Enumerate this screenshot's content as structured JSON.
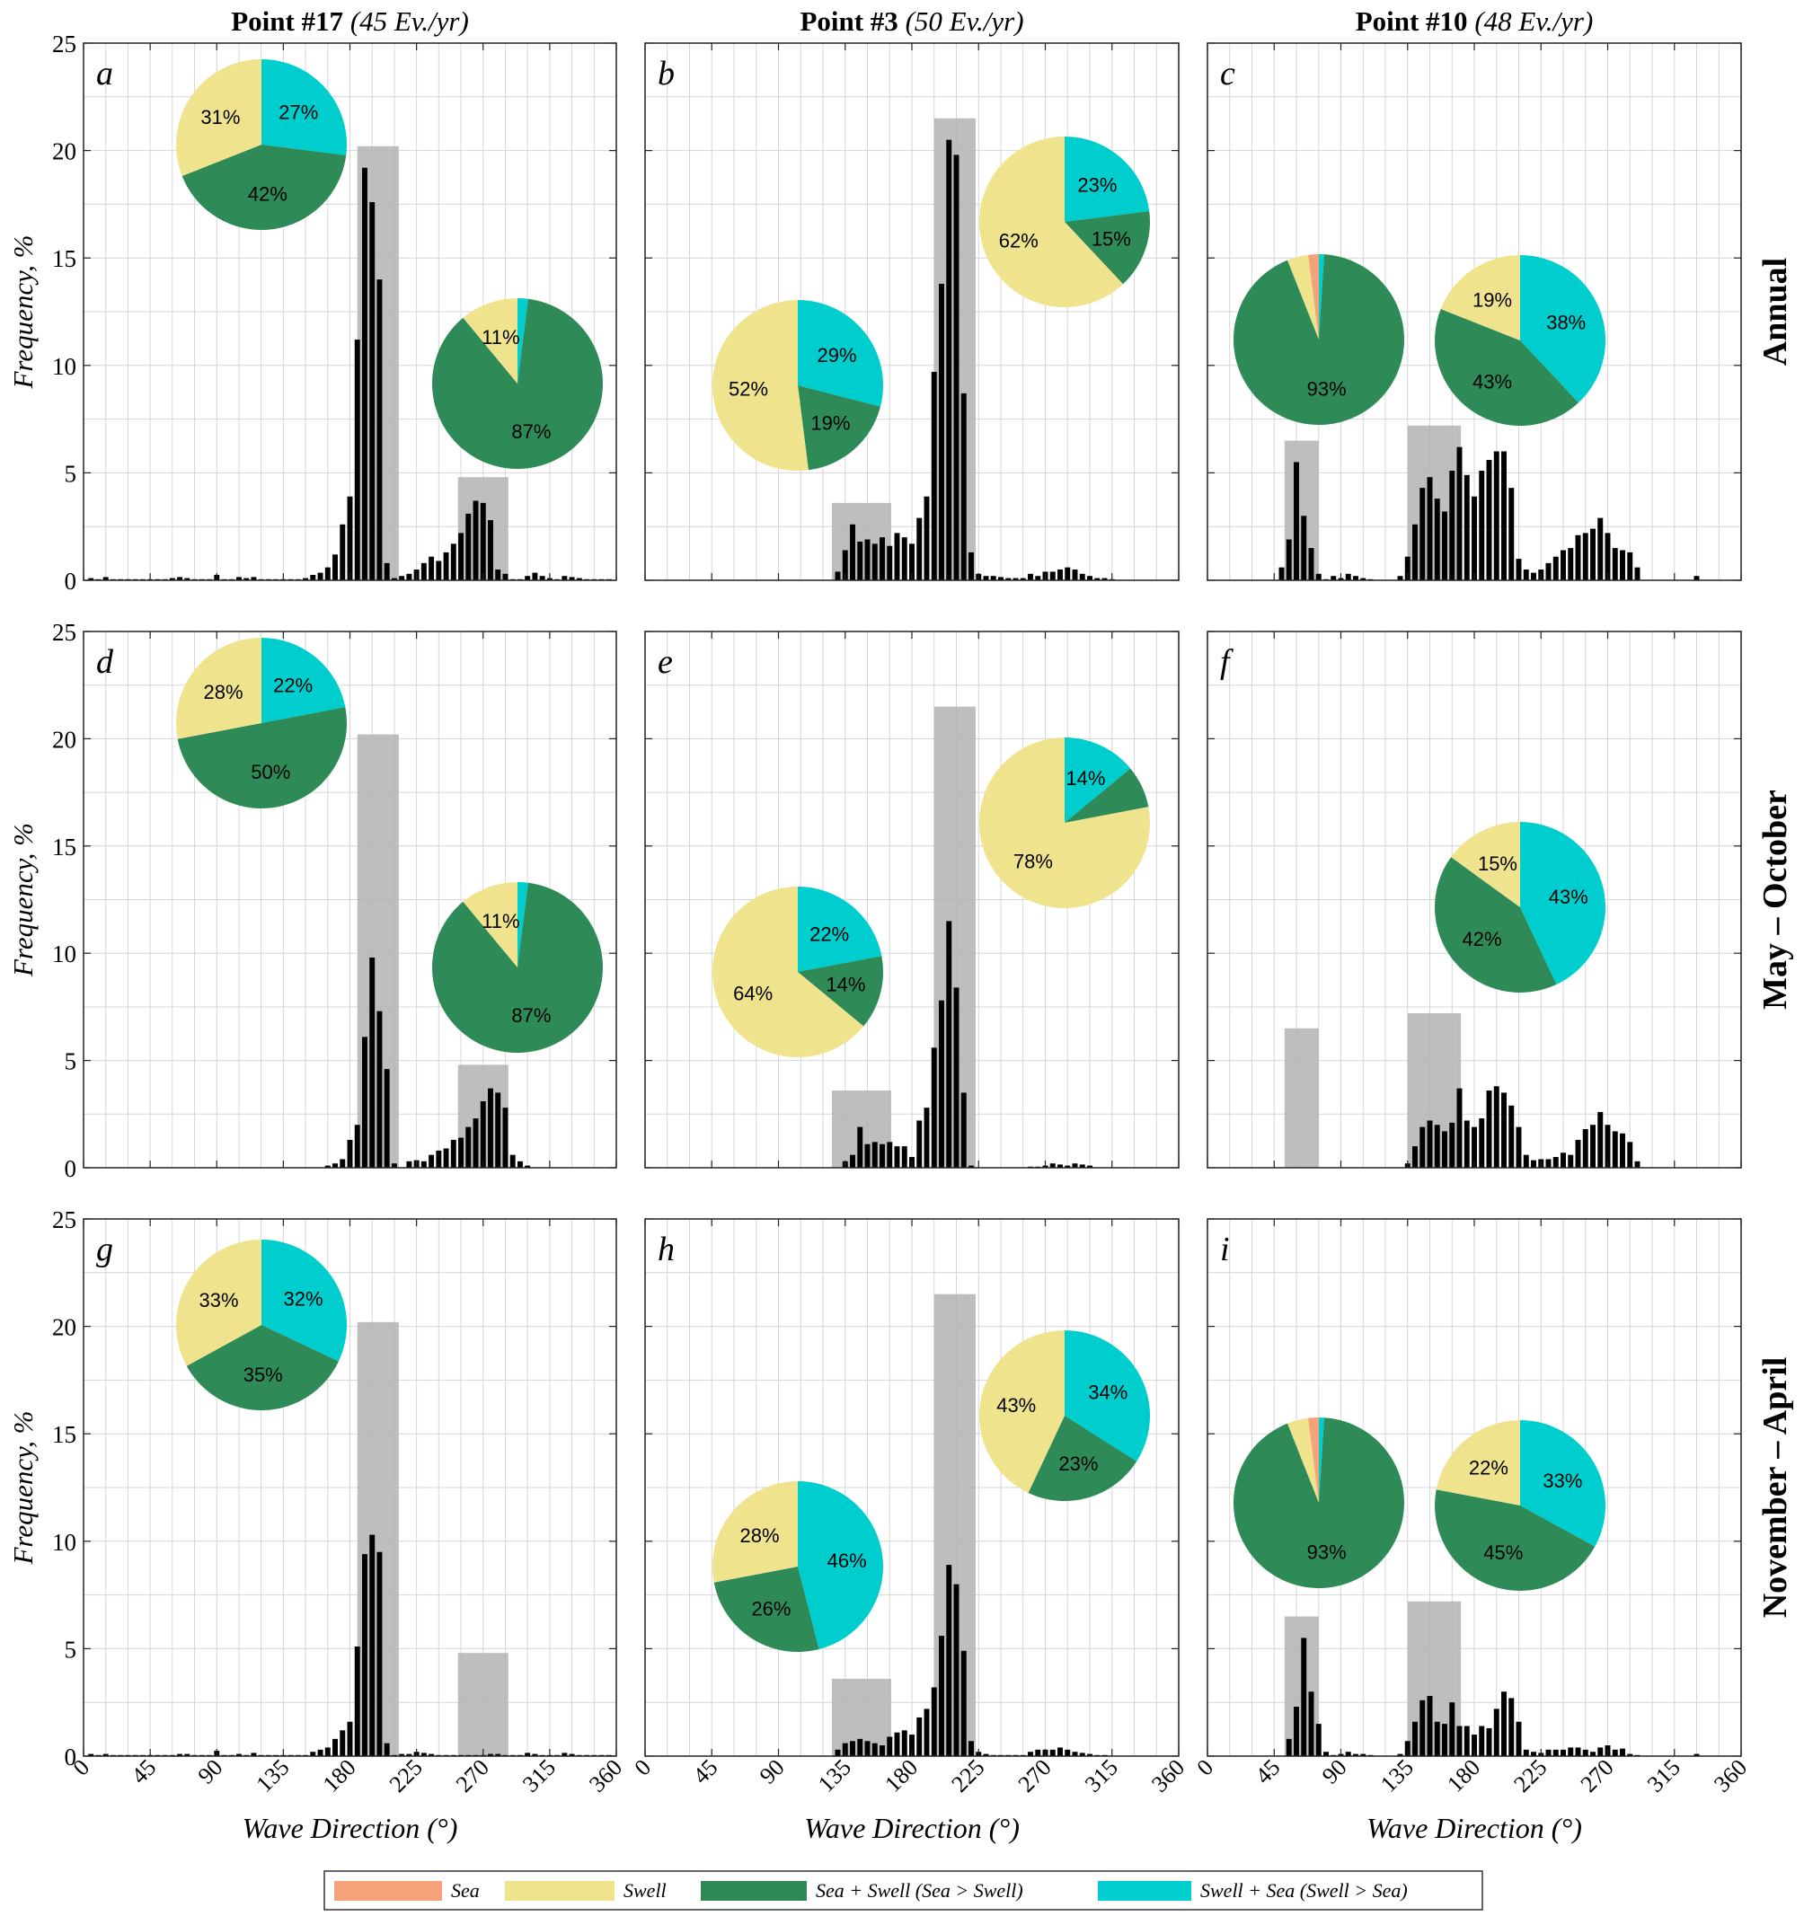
{
  "figure": {
    "columns": [
      {
        "title": "Point #17",
        "subtitle": "(45 Ev./yr)"
      },
      {
        "title": "Point #3",
        "subtitle": "(50 Ev./yr)"
      },
      {
        "title": "Point #10",
        "subtitle": "(48 Ev./yr)"
      }
    ],
    "rows": [
      "Annual",
      "May – October",
      "November – April"
    ],
    "ylabel": "Frequency, %",
    "xlabel": "Wave Direction (°)",
    "xticks": [
      0,
      45,
      90,
      135,
      180,
      225,
      270,
      315,
      360
    ],
    "yticks": [
      0,
      5,
      10,
      15,
      20,
      25
    ],
    "xlim": [
      0,
      360
    ],
    "ylim": [
      0,
      25
    ],
    "legend": {
      "placement": "bottom-center",
      "items": [
        {
          "label": "Sea",
          "color": "#F5A27A"
        },
        {
          "label": "Swell",
          "color": "#F0E38E"
        },
        {
          "label": "Sea + Swell (Sea > Swell)",
          "color": "#2E8B57"
        },
        {
          "label": "Swell + Sea (Swell > Sea)",
          "color": "#00CDCD"
        }
      ]
    },
    "colors": {
      "bar": "#000000",
      "sector_band": "#b3b3b3",
      "grid": "#d6d6d6"
    }
  },
  "chart_data": [
    {
      "type": "bar",
      "panel": "a",
      "column": 0,
      "row": 0,
      "x_step": 5,
      "x": [
        5,
        10,
        15,
        20,
        25,
        30,
        35,
        40,
        45,
        50,
        55,
        60,
        65,
        70,
        75,
        80,
        85,
        90,
        95,
        100,
        105,
        110,
        115,
        120,
        125,
        130,
        135,
        140,
        145,
        150,
        155,
        160,
        165,
        170,
        175,
        180,
        185,
        190,
        195,
        200,
        205,
        210,
        215,
        220,
        225,
        230,
        235,
        240,
        245,
        250,
        255,
        260,
        265,
        270,
        275,
        280,
        285,
        290,
        295,
        300,
        305,
        310,
        315,
        320,
        325,
        330,
        335,
        340,
        345,
        350,
        355
      ],
      "values": [
        0.1,
        0.05,
        0.15,
        0.05,
        0.05,
        0.05,
        0.05,
        0.05,
        0.05,
        0.05,
        0.05,
        0.1,
        0.15,
        0.1,
        0.05,
        0.05,
        0.05,
        0.25,
        0.05,
        0.05,
        0.15,
        0.1,
        0.15,
        0.05,
        0.05,
        0.05,
        0.05,
        0.05,
        0.05,
        0.1,
        0.25,
        0.35,
        0.6,
        1.2,
        2.6,
        3.9,
        11.2,
        19.2,
        17.6,
        14.0,
        0.8,
        0.1,
        0.2,
        0.3,
        0.5,
        0.8,
        1.1,
        0.9,
        1.3,
        1.7,
        2.2,
        3.1,
        3.7,
        3.6,
        2.8,
        0.5,
        0.3,
        0.05,
        0.05,
        0.2,
        0.35,
        0.2,
        0.1,
        0.05,
        0.2,
        0.15,
        0.1,
        0.05,
        0.05,
        0.05,
        0.05
      ],
      "sectors": [
        {
          "from": 185,
          "to": 213,
          "height": 20.2
        },
        {
          "from": 253,
          "to": 287,
          "height": 4.8
        }
      ],
      "pies": [
        {
          "values": [
            0,
            31,
            42,
            27
          ],
          "labels": [
            "",
            "31%",
            "42%",
            "27%"
          ]
        },
        {
          "values": [
            0,
            11,
            87,
            2
          ],
          "labels": [
            "",
            "11%",
            "87%",
            ""
          ]
        }
      ]
    },
    {
      "type": "bar",
      "panel": "b",
      "column": 1,
      "row": 0,
      "x_step": 5,
      "x": [
        130,
        135,
        140,
        145,
        150,
        155,
        160,
        165,
        170,
        175,
        180,
        185,
        190,
        195,
        200,
        205,
        210,
        215,
        220,
        225,
        230,
        235,
        240,
        245,
        250,
        255,
        260,
        265,
        270,
        275,
        280,
        285,
        290,
        295,
        300,
        305,
        310,
        315
      ],
      "values": [
        0.4,
        1.4,
        2.6,
        1.8,
        1.9,
        1.7,
        2.0,
        1.6,
        2.2,
        2.0,
        1.7,
        2.9,
        3.9,
        9.7,
        13.8,
        20.5,
        19.8,
        8.7,
        1.3,
        0.3,
        0.2,
        0.2,
        0.15,
        0.1,
        0.1,
        0.1,
        0.3,
        0.2,
        0.4,
        0.4,
        0.5,
        0.6,
        0.5,
        0.3,
        0.2,
        0.1,
        0.1,
        0.05
      ],
      "sectors": [
        {
          "from": 126,
          "to": 166,
          "height": 3.6
        },
        {
          "from": 195,
          "to": 223,
          "height": 21.5
        }
      ],
      "pies": [
        {
          "values": [
            0,
            52,
            19,
            29
          ],
          "labels": [
            "",
            "52%",
            "19%",
            "29%"
          ]
        },
        {
          "values": [
            0,
            62,
            15,
            23
          ],
          "labels": [
            "",
            "62%",
            "15%",
            "23%"
          ]
        }
      ]
    },
    {
      "type": "bar",
      "panel": "c",
      "column": 2,
      "row": 0,
      "x_step": 5,
      "x": [
        50,
        55,
        60,
        65,
        70,
        75,
        80,
        85,
        90,
        95,
        100,
        105,
        110,
        130,
        135,
        140,
        145,
        150,
        155,
        160,
        165,
        170,
        175,
        180,
        185,
        190,
        195,
        200,
        205,
        210,
        215,
        220,
        225,
        230,
        235,
        240,
        245,
        250,
        255,
        260,
        265,
        270,
        275,
        280,
        285,
        290,
        330
      ],
      "values": [
        0.6,
        1.9,
        5.5,
        3.0,
        1.5,
        0.3,
        0.05,
        0.2,
        0.1,
        0.3,
        0.2,
        0.1,
        0.05,
        0.2,
        1.1,
        2.6,
        4.3,
        4.8,
        3.8,
        3.2,
        5.1,
        6.2,
        4.9,
        3.9,
        5.1,
        5.6,
        6.0,
        6.0,
        4.3,
        1.0,
        0.5,
        0.35,
        0.5,
        0.8,
        1.1,
        1.4,
        1.5,
        2.1,
        2.2,
        2.4,
        2.9,
        2.2,
        1.5,
        1.4,
        1.3,
        0.6,
        0.2
      ],
      "sectors": [
        {
          "from": 52,
          "to": 75,
          "height": 6.5
        },
        {
          "from": 135,
          "to": 171,
          "height": 7.2
        }
      ],
      "pies": [
        {
          "values": [
            2,
            4,
            93,
            1
          ],
          "labels": [
            "",
            "",
            "93%",
            ""
          ]
        },
        {
          "values": [
            0,
            19,
            43,
            38
          ],
          "labels": [
            "",
            "19%",
            "43%",
            "38%"
          ]
        }
      ]
    },
    {
      "type": "bar",
      "panel": "d",
      "column": 0,
      "row": 1,
      "x_step": 5,
      "x": [
        165,
        170,
        175,
        180,
        185,
        190,
        195,
        200,
        205,
        210,
        220,
        225,
        230,
        235,
        240,
        245,
        250,
        255,
        260,
        265,
        270,
        275,
        280,
        285,
        290,
        295,
        300
      ],
      "values": [
        0.1,
        0.2,
        0.4,
        1.3,
        2.0,
        6.1,
        9.8,
        7.3,
        4.6,
        0.2,
        0.3,
        0.35,
        0.3,
        0.6,
        0.8,
        0.9,
        1.3,
        1.4,
        1.9,
        2.3,
        3.1,
        3.7,
        3.5,
        2.8,
        0.6,
        0.3,
        0.1
      ],
      "sectors": [
        {
          "from": 185,
          "to": 213,
          "height": 20.2
        },
        {
          "from": 253,
          "to": 287,
          "height": 4.8
        }
      ],
      "pies": [
        {
          "values": [
            0,
            28,
            50,
            22
          ],
          "labels": [
            "",
            "28%",
            "50%",
            "22%"
          ]
        },
        {
          "values": [
            0,
            11,
            87,
            2
          ],
          "labels": [
            "",
            "11%",
            "87%",
            ""
          ]
        }
      ]
    },
    {
      "type": "bar",
      "panel": "e",
      "column": 1,
      "row": 1,
      "x_step": 5,
      "x": [
        135,
        140,
        145,
        150,
        155,
        160,
        165,
        170,
        175,
        180,
        185,
        190,
        195,
        200,
        205,
        210,
        215,
        220,
        260,
        265,
        270,
        275,
        280,
        285,
        290,
        295,
        300
      ],
      "values": [
        0.3,
        0.6,
        1.9,
        1.1,
        1.2,
        1.1,
        1.2,
        1.0,
        1.0,
        0.5,
        2.2,
        2.8,
        5.6,
        7.8,
        11.5,
        8.4,
        3.5,
        0.1,
        0.05,
        0.05,
        0.1,
        0.2,
        0.15,
        0.1,
        0.2,
        0.15,
        0.1
      ],
      "sectors": [
        {
          "from": 126,
          "to": 166,
          "height": 3.6
        },
        {
          "from": 195,
          "to": 223,
          "height": 21.5
        }
      ],
      "pies": [
        {
          "values": [
            0,
            64,
            14,
            22
          ],
          "labels": [
            "",
            "64%",
            "14%",
            "22%"
          ]
        },
        {
          "values": [
            0,
            78,
            8,
            14
          ],
          "labels": [
            "",
            "78%",
            "",
            "14%"
          ]
        }
      ]
    },
    {
      "type": "bar",
      "panel": "f",
      "column": 2,
      "row": 1,
      "x_step": 5,
      "x": [
        135,
        140,
        145,
        150,
        155,
        160,
        165,
        170,
        175,
        180,
        185,
        190,
        195,
        200,
        205,
        210,
        215,
        220,
        225,
        230,
        235,
        240,
        245,
        250,
        255,
        260,
        265,
        270,
        275,
        280,
        285,
        290
      ],
      "values": [
        0.2,
        1.0,
        1.9,
        2.2,
        2.0,
        1.7,
        2.1,
        3.7,
        2.2,
        1.9,
        2.3,
        3.6,
        3.8,
        3.5,
        2.9,
        1.9,
        0.6,
        0.35,
        0.4,
        0.4,
        0.5,
        0.7,
        0.6,
        1.3,
        1.8,
        2.0,
        2.6,
        2.0,
        1.7,
        1.6,
        1.2,
        0.3
      ],
      "sectors": [
        {
          "from": 52,
          "to": 75,
          "height": 6.5
        },
        {
          "from": 135,
          "to": 171,
          "height": 7.2
        }
      ],
      "pies": [
        {
          "values": [
            0,
            15,
            42,
            43
          ],
          "labels": [
            "",
            "15%",
            "42%",
            "43%"
          ]
        }
      ]
    },
    {
      "type": "bar",
      "panel": "g",
      "column": 0,
      "row": 2,
      "x_step": 5,
      "x": [
        5,
        10,
        15,
        20,
        25,
        30,
        35,
        40,
        45,
        50,
        55,
        60,
        65,
        70,
        75,
        80,
        85,
        90,
        95,
        100,
        105,
        110,
        115,
        120,
        125,
        130,
        135,
        140,
        145,
        150,
        155,
        160,
        165,
        170,
        175,
        180,
        185,
        190,
        195,
        200,
        205,
        210,
        215,
        220,
        225,
        230,
        235,
        240,
        245,
        250,
        255,
        260,
        265,
        270,
        275,
        280,
        285,
        290,
        295,
        300,
        305,
        310,
        315,
        320,
        325,
        330,
        335,
        340,
        345,
        350,
        355
      ],
      "values": [
        0.1,
        0.05,
        0.1,
        0.05,
        0.05,
        0.05,
        0.05,
        0.05,
        0.05,
        0.05,
        0.05,
        0.05,
        0.1,
        0.1,
        0.05,
        0.05,
        0.05,
        0.25,
        0.05,
        0.05,
        0.1,
        0.05,
        0.15,
        0.05,
        0.05,
        0.05,
        0.05,
        0.05,
        0.05,
        0.05,
        0.2,
        0.3,
        0.4,
        0.8,
        1.2,
        1.6,
        5.1,
        9.4,
        10.3,
        9.5,
        0.6,
        0.05,
        0.1,
        0.1,
        0.2,
        0.15,
        0.1,
        0.05,
        0.05,
        0.05,
        0.05,
        0.05,
        0.05,
        0.05,
        0.1,
        0.1,
        0.05,
        0.05,
        0.05,
        0.15,
        0.1,
        0.05,
        0.05,
        0.05,
        0.15,
        0.1,
        0.05,
        0.05,
        0.05,
        0.05,
        0.05
      ],
      "sectors": [
        {
          "from": 185,
          "to": 213,
          "height": 20.2
        },
        {
          "from": 253,
          "to": 287,
          "height": 4.8
        }
      ],
      "pies": [
        {
          "values": [
            0,
            33,
            35,
            32
          ],
          "labels": [
            "",
            "33%",
            "35%",
            "32%"
          ]
        }
      ]
    },
    {
      "type": "bar",
      "panel": "h",
      "column": 1,
      "row": 2,
      "x_step": 5,
      "x": [
        130,
        135,
        140,
        145,
        150,
        155,
        160,
        165,
        170,
        175,
        180,
        185,
        190,
        195,
        200,
        205,
        210,
        215,
        220,
        225,
        230,
        235,
        240,
        245,
        250,
        255,
        260,
        265,
        270,
        275,
        280,
        285,
        290,
        295,
        300,
        305,
        310
      ],
      "values": [
        0.3,
        0.6,
        0.7,
        0.8,
        0.7,
        0.6,
        0.5,
        0.9,
        1.1,
        1.2,
        1.0,
        1.8,
        2.2,
        3.2,
        5.6,
        8.9,
        8.0,
        4.9,
        0.7,
        0.2,
        0.1,
        0.05,
        0.05,
        0.05,
        0.05,
        0.05,
        0.2,
        0.3,
        0.3,
        0.3,
        0.4,
        0.3,
        0.2,
        0.15,
        0.1,
        0.05,
        0.05
      ],
      "sectors": [
        {
          "from": 126,
          "to": 166,
          "height": 3.6
        },
        {
          "from": 195,
          "to": 223,
          "height": 21.5
        }
      ],
      "pies": [
        {
          "values": [
            0,
            28,
            26,
            46
          ],
          "labels": [
            "",
            "28%",
            "26%",
            "46%"
          ]
        },
        {
          "values": [
            0,
            43,
            23,
            34
          ],
          "labels": [
            "",
            "43%",
            "23%",
            "34%"
          ]
        }
      ]
    },
    {
      "type": "bar",
      "panel": "i",
      "column": 2,
      "row": 2,
      "x_step": 5,
      "x": [
        55,
        60,
        65,
        70,
        75,
        80,
        85,
        90,
        95,
        100,
        105,
        110,
        130,
        135,
        140,
        145,
        150,
        155,
        160,
        165,
        170,
        175,
        180,
        185,
        190,
        195,
        200,
        205,
        210,
        215,
        220,
        225,
        230,
        235,
        240,
        245,
        250,
        255,
        260,
        265,
        270,
        275,
        280,
        285,
        290,
        330
      ],
      "values": [
        0.8,
        2.3,
        5.5,
        3.0,
        1.5,
        0.2,
        0.05,
        0.1,
        0.2,
        0.1,
        0.1,
        0.05,
        0.1,
        0.7,
        1.6,
        2.6,
        2.8,
        1.6,
        1.5,
        2.5,
        1.4,
        1.4,
        1.0,
        1.4,
        1.3,
        2.2,
        3.0,
        2.7,
        1.6,
        0.3,
        0.2,
        0.15,
        0.3,
        0.3,
        0.3,
        0.4,
        0.4,
        0.3,
        0.2,
        0.4,
        0.5,
        0.3,
        0.35,
        0.1,
        0.05,
        0.1
      ],
      "sectors": [
        {
          "from": 52,
          "to": 75,
          "height": 6.5
        },
        {
          "from": 135,
          "to": 171,
          "height": 7.2
        }
      ],
      "pies": [
        {
          "values": [
            2,
            4,
            93,
            1
          ],
          "labels": [
            "",
            "",
            "93%",
            ""
          ]
        },
        {
          "values": [
            0,
            22,
            45,
            33
          ],
          "labels": [
            "",
            "22%",
            "45%",
            "33%"
          ]
        }
      ]
    }
  ]
}
